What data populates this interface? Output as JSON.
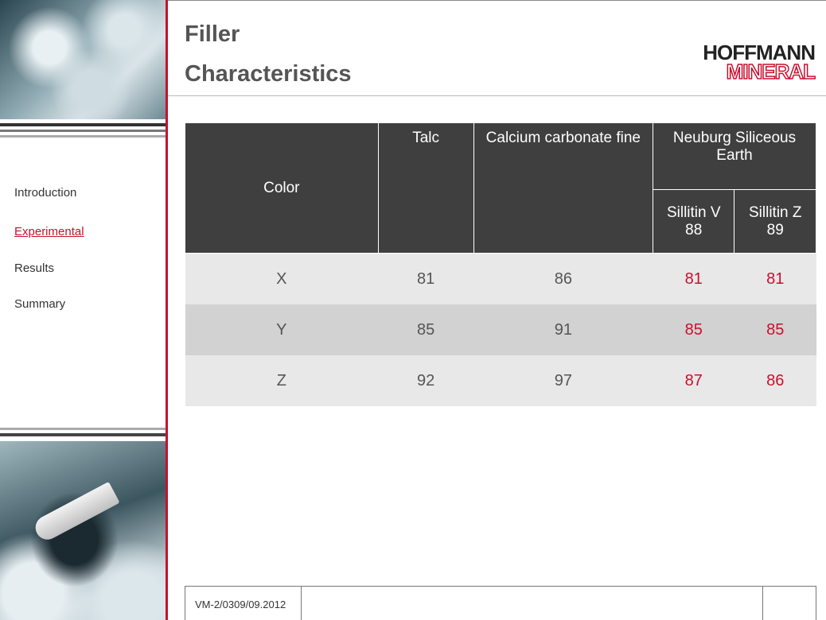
{
  "sidebar": {
    "nav": [
      "Introduction",
      "Experimental",
      "Results",
      "Summary"
    ]
  },
  "header": {
    "title": [
      "Filler",
      "Characteristics"
    ],
    "logo": [
      "HOFFMANN",
      "MINERAL"
    ]
  },
  "table": {
    "corner": "Color",
    "columns": [
      "Talc",
      "Calcium carbonate fine",
      "Neuburg Siliceous Earth"
    ],
    "subcolumns": [
      "Sillitin V 88",
      "Sillitin Z 89"
    ],
    "rows": [
      [
        "X",
        81,
        86,
        81,
        81
      ],
      [
        "Y",
        85,
        91,
        85,
        85
      ],
      [
        "Z",
        92,
        97,
        87,
        86
      ]
    ]
  },
  "footer": {
    "code": "VM-2/0309/09.2012"
  }
}
